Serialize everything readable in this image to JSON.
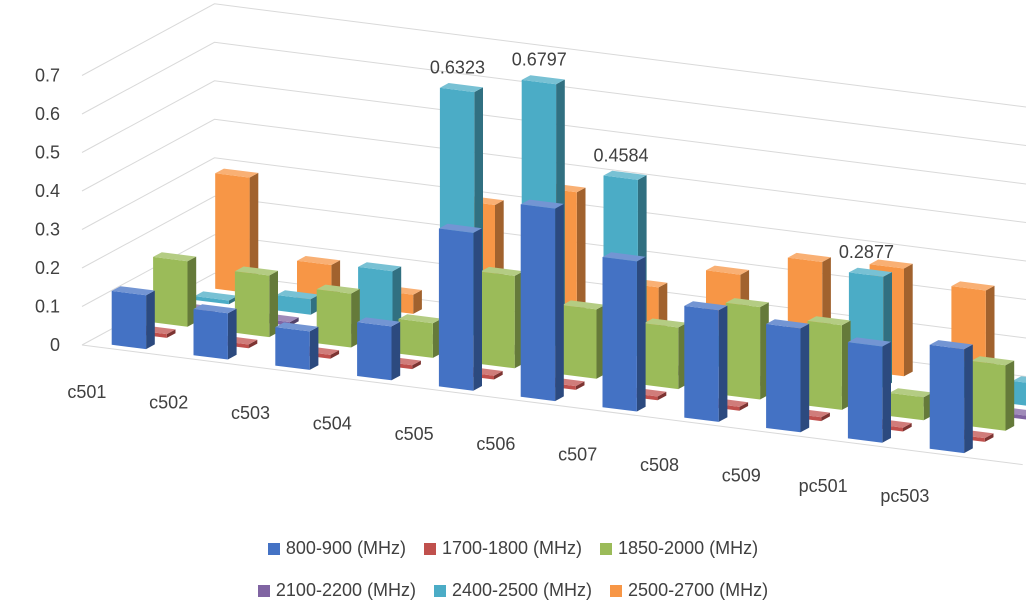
{
  "chart_data": {
    "type": "bar",
    "subtype": "3d-clustered-column",
    "title": "",
    "xlabel": "",
    "ylabel": "",
    "ylim": [
      0,
      0.7
    ],
    "yticks": [
      "0",
      "0.1",
      "0.2",
      "0.3",
      "0.4",
      "0.5",
      "0.6",
      "0.7"
    ],
    "grid": true,
    "legend_position": "bottom",
    "categories": [
      "c501",
      "c502",
      "c503",
      "c504",
      "c505",
      "c506",
      "c507",
      "c508",
      "c509",
      "pc501",
      "pc503"
    ],
    "series": [
      {
        "name": "800-900 (MHz)",
        "color": "#4472C4",
        "values": [
          0.14,
          0.12,
          0.1,
          0.14,
          0.41,
          0.5,
          0.39,
          0.29,
          0.27,
          0.25,
          0.27
        ]
      },
      {
        "name": "1700-1800 (MHz)",
        "color": "#C0504D",
        "values": [
          0.01,
          0.01,
          0.01,
          0.01,
          0.01,
          0.01,
          0.01,
          0.01,
          0.01,
          0.01,
          0.01
        ]
      },
      {
        "name": "1850-2000 (MHz)",
        "color": "#9BBB59",
        "values": [
          0.17,
          0.16,
          0.14,
          0.09,
          0.24,
          0.18,
          0.16,
          0.24,
          0.22,
          0.06,
          0.17
        ]
      },
      {
        "name": "2100-2200 (MHz)",
        "color": "#8064A2",
        "values": [
          0.01,
          0.01,
          0.01,
          0.01,
          0.01,
          0.01,
          0.01,
          0.01,
          0.01,
          0.01,
          0.01
        ]
      },
      {
        "name": "2400-2500 (MHz)",
        "color": "#4BACC6",
        "values": [
          0.01,
          0.04,
          0.14,
          0.6323,
          0.6797,
          0.4584,
          0.08,
          0.06,
          0.2877,
          0.08,
          0.06
        ]
      },
      {
        "name": "2500-2700 (MHz)",
        "color": "#F79646",
        "values": [
          0.3,
          0.1,
          0.05,
          0.31,
          0.37,
          0.15,
          0.21,
          0.27,
          0.28,
          0.25,
          0.17
        ]
      }
    ],
    "data_labels": [
      {
        "series": "2400-2500 (MHz)",
        "category": "c504",
        "text": "0.6323"
      },
      {
        "series": "2400-2500 (MHz)",
        "category": "c505",
        "text": "0.6797"
      },
      {
        "series": "2400-2500 (MHz)",
        "category": "c506",
        "text": "0.4584"
      },
      {
        "series": "2400-2500 (MHz)",
        "category": "c509",
        "text": "0.2877"
      }
    ]
  },
  "legend": {
    "row1": [
      "800-900 (MHz)",
      "1700-1800 (MHz)",
      "1850-2000 (MHz)"
    ],
    "row2": [
      "2100-2200 (MHz)",
      "2400-2500 (MHz)",
      "2500-2700 (MHz)"
    ]
  }
}
